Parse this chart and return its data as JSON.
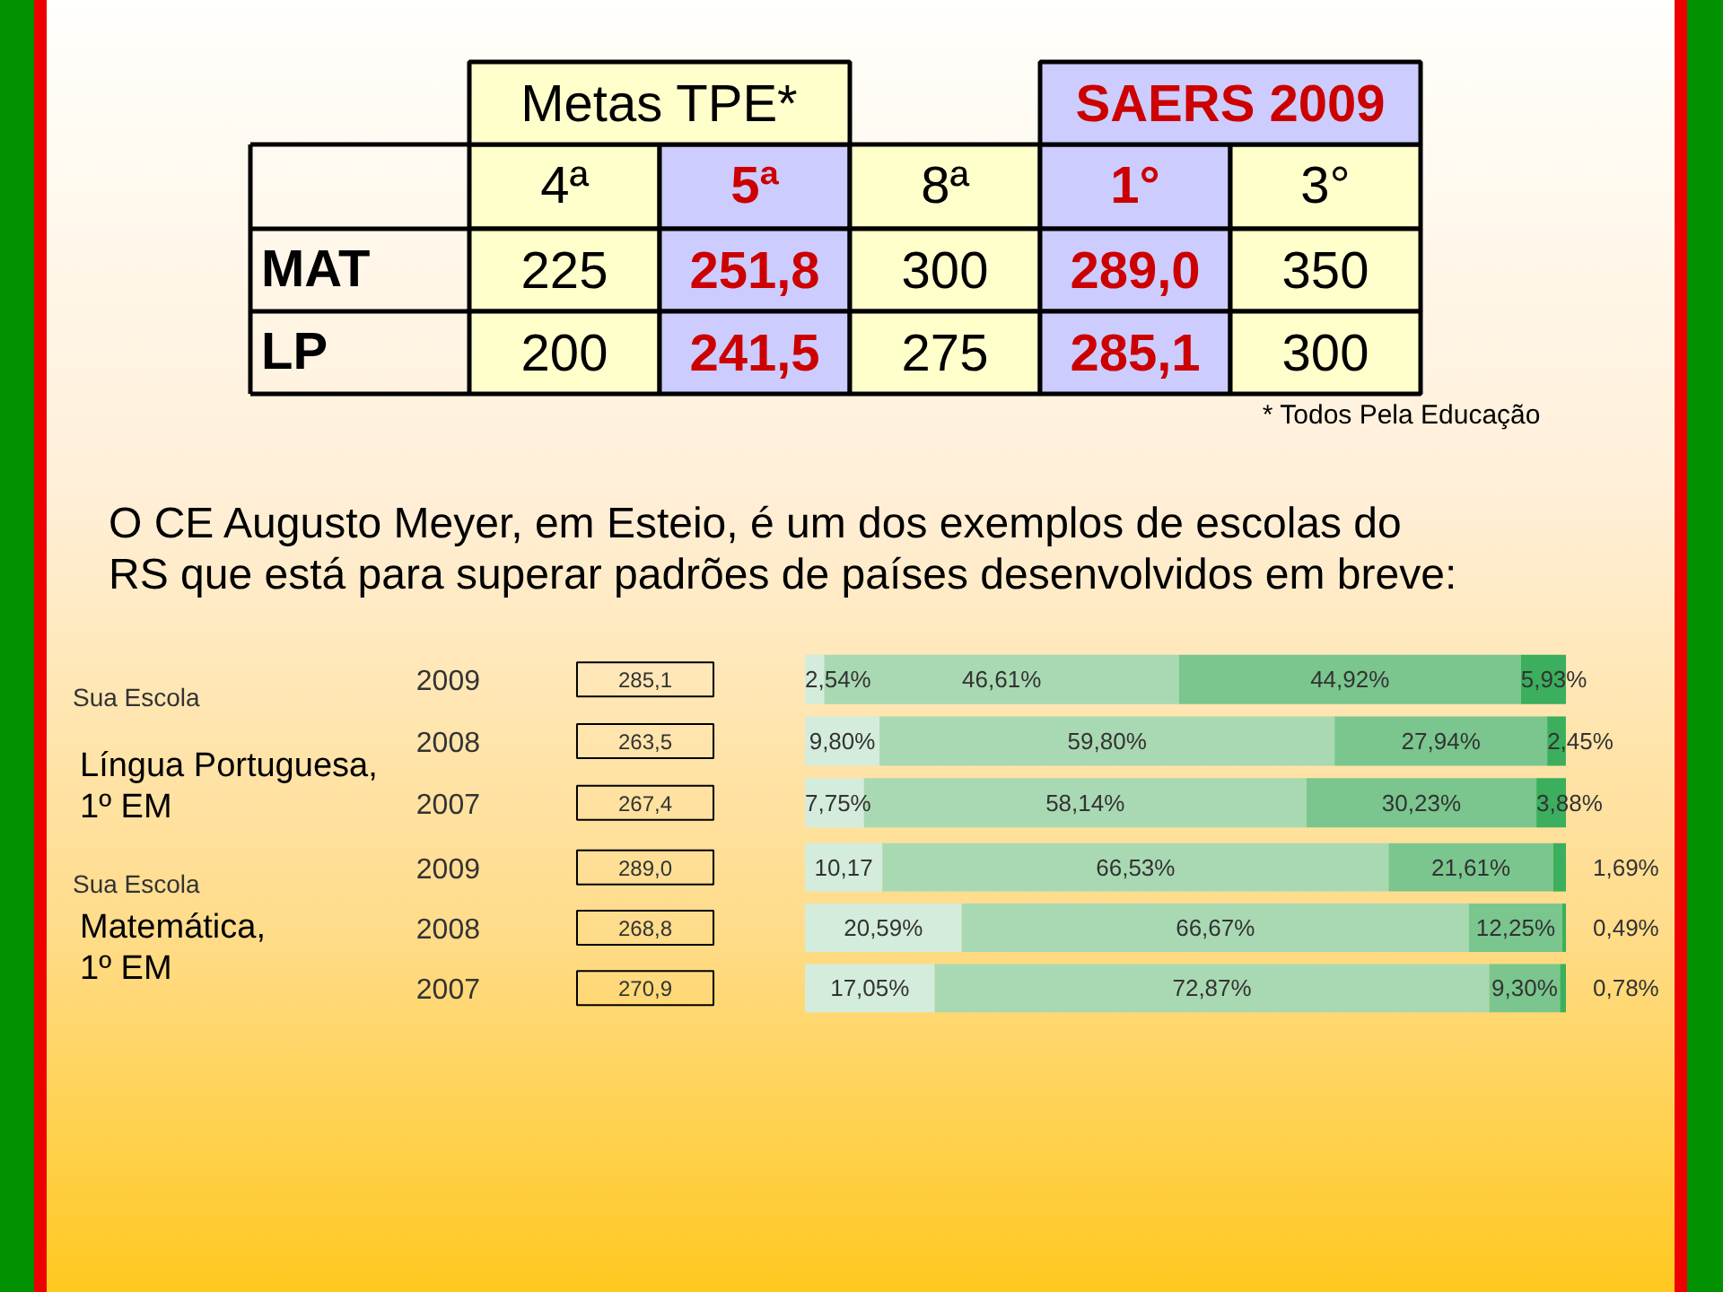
{
  "chart_data": [
    {
      "type": "heatmap",
      "categories": [
        "4ª",
        "5ª",
        "8ª",
        "1°",
        "3°"
      ],
      "y_categories": [
        "MAT",
        "LP"
      ],
      "cells": [
        [
          225,
          251.8,
          300,
          289.0,
          350
        ],
        [
          200,
          241.5,
          275,
          285.1,
          300
        ]
      ],
      "cell_labels": [
        [
          "225",
          "251,8",
          "300",
          "289,0",
          "350"
        ],
        [
          "200",
          "241,5",
          "275",
          "285,1",
          "300"
        ]
      ],
      "annotations": [
        "Metas TPE*",
        "SAERS 2009",
        "* Todos Pela Educação"
      ]
    },
    {
      "type": "bar",
      "orientation": "horizontal",
      "stacked": true,
      "title": "O CE Augusto Meyer, em Esteio, é um dos exemplos de escolas do\nRS que está para superar padrões de países desenvolvidos em breve:",
      "ylabel": "Língua Portuguesa,\n1º EM",
      "categories": [
        "2009",
        "2008",
        "2007"
      ],
      "xlim": [
        0,
        100
      ],
      "tick_labels": "y",
      "series": [
        {
          "color": "#d4ecdc",
          "values": [
            2.54,
            9.8,
            7.75
          ],
          "value_labels": [
            "2,54%",
            "9,80%",
            "7,75%"
          ]
        },
        {
          "color": "#a9d9b3",
          "values": [
            46.61,
            59.8,
            58.14
          ],
          "value_labels": [
            "46,61%",
            "59,80%",
            "58,14%"
          ]
        },
        {
          "color": "#7ac68e",
          "values": [
            44.92,
            27.94,
            30.23
          ],
          "value_labels": [
            "44,92%",
            "27,94%",
            "30,23%"
          ]
        },
        {
          "color": "#3baf5e",
          "values": [
            5.93,
            2.45,
            3.88
          ],
          "value_labels": [
            "5,93%",
            "2,45%",
            "3,88%"
          ]
        }
      ],
      "annotations": [
        "Sua Escola",
        "285,1",
        "263,5",
        "267,4"
      ]
    },
    {
      "type": "bar",
      "orientation": "horizontal",
      "stacked": true,
      "ylabel": "Matemática,\n1º EM",
      "categories": [
        "2009",
        "2008",
        "2007"
      ],
      "xlim": [
        0,
        100
      ],
      "tick_labels": "y",
      "series": [
        {
          "color": "#d4ecdc",
          "values": [
            10.17,
            20.59,
            17.05
          ],
          "value_labels": [
            "10,17",
            "20,59%",
            "17,05%"
          ]
        },
        {
          "color": "#a9d9b3",
          "values": [
            66.53,
            66.67,
            72.87
          ],
          "value_labels": [
            "66,53%",
            "66,67%",
            "72,87%"
          ]
        },
        {
          "color": "#7ac68e",
          "values": [
            21.61,
            12.25,
            9.3
          ],
          "value_labels": [
            "21,61%",
            "12,25%",
            "9,30%"
          ]
        },
        {
          "color": "#3baf5e",
          "values": [
            1.69,
            0.49,
            0.78
          ],
          "value_labels": [
            "1,69%",
            "0,49%",
            "0,78%"
          ]
        }
      ],
      "annotations": [
        "Sua Escola",
        "289,0",
        "268,8",
        "270,9"
      ]
    }
  ]
}
